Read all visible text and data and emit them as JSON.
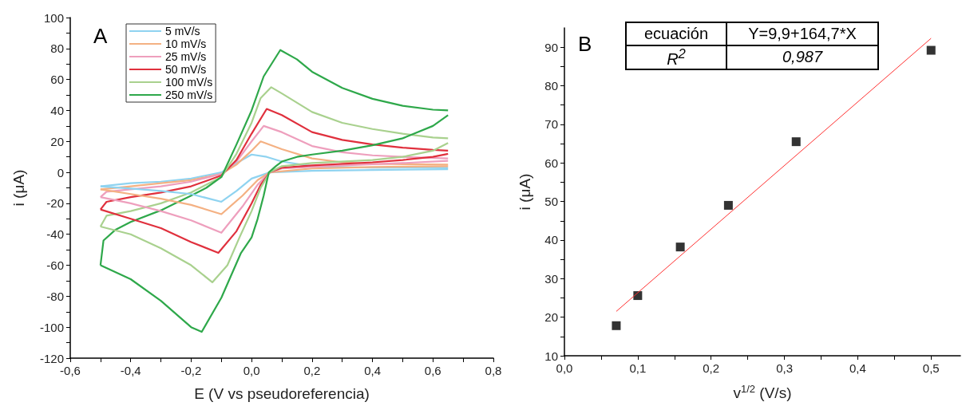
{
  "chart_data": [
    {
      "type": "line",
      "xlabel": "E (V vs pseudoreferencia)",
      "ylabel": "i (μA)",
      "annotations": [
        "A"
      ],
      "legend": "top left",
      "marker": "none",
      "xlim": [
        -0.6,
        0.8
      ],
      "xticks": [
        {
          "value": -0.6,
          "label": "-0,6"
        },
        {
          "value": -0.5,
          "label": null
        },
        {
          "value": -0.4,
          "label": "-0,4"
        },
        {
          "value": -0.3,
          "label": null
        },
        {
          "value": -0.2,
          "label": "-0,2"
        },
        {
          "value": -0.1,
          "label": null
        },
        {
          "value": 0,
          "label": "0,0"
        },
        {
          "value": 0.1,
          "label": null
        },
        {
          "value": 0.2,
          "label": "0,2"
        },
        {
          "value": 0.3,
          "label": null
        },
        {
          "value": 0.4,
          "label": "0,4"
        },
        {
          "value": 0.5,
          "label": null
        },
        {
          "value": 0.6,
          "label": "0,6"
        },
        {
          "value": 0.7,
          "label": null
        },
        {
          "value": 0.8,
          "label": "0,8"
        }
      ],
      "ylim": [
        -120,
        100
      ],
      "yticks": [
        -120,
        {
          "value": -110,
          "label": null
        },
        -100,
        {
          "value": -90,
          "label": null
        },
        -80,
        {
          "value": -70,
          "label": null
        },
        -60,
        {
          "value": -50,
          "label": null
        },
        -40,
        {
          "value": -30,
          "label": null
        },
        -20,
        {
          "value": -10,
          "label": null
        },
        0,
        {
          "value": 10,
          "label": null
        },
        20,
        {
          "value": 30,
          "label": null
        },
        40,
        {
          "value": 50,
          "label": null
        },
        60,
        {
          "value": 70,
          "label": null
        },
        80,
        {
          "value": 90,
          "label": null
        },
        100
      ],
      "series": [
        {
          "name": "5 mV/s",
          "color": "#8fd3f0",
          "x": [
            -0.5,
            -0.4,
            -0.3,
            -0.2,
            -0.1,
            -0.05,
            0,
            0.05,
            0.1,
            0.2,
            0.4,
            0.65
          ],
          "values": [
            -9,
            -7,
            -6,
            -4,
            0,
            6,
            11.5,
            10,
            7,
            4,
            3,
            3
          ]
        },
        {
          "name": "10 mV/s",
          "color": "#f4b183",
          "x": [
            -0.5,
            -0.4,
            -0.3,
            -0.2,
            -0.1,
            -0.05,
            0,
            0.03,
            0.1,
            0.2,
            0.3,
            0.4,
            0.65
          ],
          "values": [
            -11,
            -9,
            -7,
            -5,
            -1,
            5,
            14,
            20,
            15,
            9,
            6.5,
            5.5,
            5
          ]
        },
        {
          "name": "25 mV/s",
          "color": "#ee9fbd",
          "x": [
            -0.5,
            -0.48,
            -0.4,
            -0.3,
            -0.2,
            -0.1,
            -0.05,
            0,
            0.04,
            0.1,
            0.2,
            0.3,
            0.4,
            0.5,
            0.65
          ],
          "values": [
            -16,
            -12.5,
            -11,
            -9,
            -6,
            -1,
            7,
            20,
            30,
            26,
            17,
            13,
            11,
            10,
            9
          ]
        },
        {
          "name": "50 mV/s",
          "color": "#e0303d",
          "x": [
            -0.5,
            -0.48,
            -0.4,
            -0.3,
            -0.2,
            -0.1,
            -0.05,
            0,
            0.05,
            0.1,
            0.2,
            0.3,
            0.4,
            0.5,
            0.6,
            0.65
          ],
          "values": [
            -24,
            -19,
            -16,
            -13,
            -9,
            -2,
            8,
            25,
            41,
            37,
            26,
            21,
            18,
            16,
            14.5,
            14
          ]
        },
        {
          "name": "100 mV/s",
          "color": "#a9d18e",
          "x": [
            -0.5,
            -0.48,
            -0.4,
            -0.3,
            -0.2,
            -0.1,
            -0.05,
            0,
            0.03,
            0.065,
            0.1,
            0.2,
            0.3,
            0.4,
            0.5,
            0.6,
            0.65
          ],
          "values": [
            -35,
            -28,
            -25,
            -20,
            -13,
            -3,
            12,
            32,
            48,
            55,
            51,
            39,
            32,
            28,
            25,
            22.5,
            22
          ]
        },
        {
          "name": "250 mV/s",
          "color": "#2ea84a",
          "x": [
            -0.5,
            -0.49,
            -0.45,
            -0.4,
            -0.3,
            -0.2,
            -0.15,
            -0.1,
            -0.05,
            0,
            0.04,
            0.095,
            0.15,
            0.2,
            0.3,
            0.4,
            0.5,
            0.6,
            0.65
          ],
          "values": [
            -60,
            -44,
            -37,
            -32,
            -24.5,
            -15,
            -10,
            -3,
            18,
            40,
            62,
            79,
            73,
            65,
            54.5,
            47.5,
            43,
            40.5,
            40
          ]
        },
        {
          "color": "#8fd3f0",
          "x": [
            -0.5,
            -0.4,
            -0.3,
            -0.2,
            -0.1,
            -0.05,
            0,
            0.06,
            0.2,
            0.4,
            0.65
          ],
          "values": [
            -9,
            -10.5,
            -12,
            -14,
            -19,
            -12,
            -4,
            0,
            1,
            1.5,
            2
          ]
        },
        {
          "color": "#f4b183",
          "x": [
            -0.5,
            -0.4,
            -0.3,
            -0.2,
            -0.1,
            -0.03,
            0.02,
            0.06,
            0.2,
            0.4,
            0.65
          ],
          "values": [
            -11,
            -14,
            -17,
            -21,
            -27,
            -15,
            -5,
            0,
            2.5,
            3.5,
            4
          ]
        },
        {
          "color": "#ee9fbd",
          "x": [
            -0.5,
            -0.4,
            -0.3,
            -0.2,
            -0.1,
            -0.03,
            0.02,
            0.06,
            0.1,
            0.3,
            0.5,
            0.65
          ],
          "values": [
            -16,
            -20,
            -25,
            -31,
            -39,
            -22,
            -8,
            0,
            2.5,
            4.5,
            6,
            7.5
          ]
        },
        {
          "color": "#e0303d",
          "x": [
            -0.5,
            -0.4,
            -0.3,
            -0.2,
            -0.11,
            -0.05,
            0,
            0.03,
            0.06,
            0.1,
            0.2,
            0.4,
            0.5,
            0.6,
            0.65
          ],
          "values": [
            -24,
            -30,
            -36,
            -45,
            -52,
            -38,
            -20,
            -8,
            0,
            3,
            4.5,
            6.5,
            8,
            10,
            12
          ]
        },
        {
          "color": "#a9d18e",
          "x": [
            -0.5,
            -0.4,
            -0.3,
            -0.2,
            -0.13,
            -0.08,
            -0.04,
            0,
            0.03,
            0.06,
            0.1,
            0.2,
            0.4,
            0.5,
            0.6,
            0.65
          ],
          "values": [
            -35,
            -40,
            -49,
            -60,
            -71,
            -60,
            -42,
            -25,
            -10,
            0,
            4,
            6,
            8,
            10,
            14,
            19
          ]
        },
        {
          "color": "#2ea84a",
          "x": [
            -0.5,
            -0.4,
            -0.3,
            -0.2,
            -0.165,
            -0.1,
            -0.035,
            0,
            0.02,
            0.04,
            0.057,
            0.08,
            0.1,
            0.15,
            0.2,
            0.3,
            0.4,
            0.5,
            0.6,
            0.65
          ],
          "values": [
            -60,
            -69,
            -83,
            -100,
            -103,
            -81,
            -52,
            -42,
            -30,
            -15,
            0,
            4,
            7,
            10,
            11.5,
            14,
            17.5,
            22,
            30,
            37
          ]
        }
      ]
    },
    {
      "type": "scatter",
      "xlabel": "v$^{1/2}$ (V/s)",
      "ylabel": "i (μA)",
      "annotations": [
        "B",
        "ecuación",
        "Y=9,9+164,7*X",
        "R$^{2}$",
        "0,987"
      ],
      "marker": "square",
      "xlim": [
        0,
        0.54
      ],
      "xticks": [
        {
          "value": 0,
          "label": "0,0"
        },
        {
          "value": 0.05,
          "label": null
        },
        {
          "value": 0.1,
          "label": "0,1"
        },
        {
          "value": 0.15,
          "label": null
        },
        {
          "value": 0.2,
          "label": "0,2"
        },
        {
          "value": 0.25,
          "label": null
        },
        {
          "value": 0.3,
          "label": "0,3"
        },
        {
          "value": 0.35,
          "label": null
        },
        {
          "value": 0.4,
          "label": "0,4"
        },
        {
          "value": 0.45,
          "label": null
        },
        {
          "value": 0.5,
          "label": "0,5"
        }
      ],
      "ylim": [
        10,
        95
      ],
      "yticks": [
        10,
        {
          "value": 15,
          "label": null
        },
        20,
        {
          "value": 25,
          "label": null
        },
        30,
        {
          "value": 35,
          "label": null
        },
        40,
        {
          "value": 45,
          "label": null
        },
        50,
        {
          "value": 55,
          "label": null
        },
        60,
        {
          "value": 65,
          "label": null
        },
        70,
        {
          "value": 75,
          "label": null
        },
        80,
        {
          "value": 85,
          "label": null
        },
        90
      ],
      "series": [
        {
          "color": "#000000",
          "x": [
            0.0707,
            0.1,
            0.158,
            0.2236,
            0.316,
            0.5
          ],
          "values": [
            17.8,
            25.6,
            38.2,
            49,
            65.5,
            89.2
          ]
        },
        {
          "type": "line",
          "marker": "none",
          "color": "#ff3030",
          "x": [
            0.0707,
            0.5
          ],
          "values": [
            21.5,
            92.3
          ]
        }
      ]
    }
  ]
}
